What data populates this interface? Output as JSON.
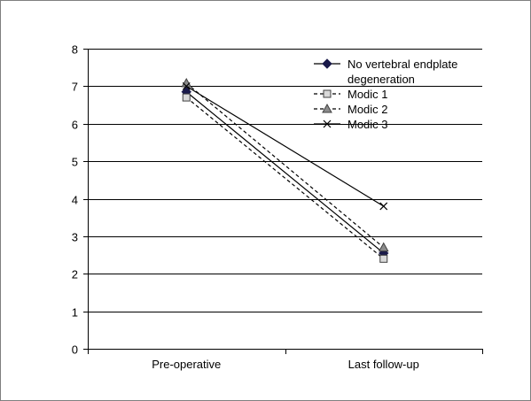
{
  "chart_data": {
    "type": "line",
    "categories": [
      "Pre-operative",
      "Last follow-up"
    ],
    "ylim": [
      0,
      8
    ],
    "yticks": [
      0,
      1,
      2,
      3,
      4,
      5,
      6,
      7,
      8
    ],
    "grid": true,
    "legend_position": "top-right",
    "series": [
      {
        "name": "No vertebral endplate degeneration",
        "name_lines": [
          "No vertebral endplate",
          "degeneration"
        ],
        "values": [
          6.85,
          2.55
        ],
        "marker": "diamond",
        "dash": "solid",
        "color": "#000000"
      },
      {
        "name": "Modic 1",
        "values": [
          6.7,
          2.4
        ],
        "marker": "square",
        "dash": "dashed",
        "color": "#000000"
      },
      {
        "name": "Modic 2",
        "values": [
          7.08,
          2.7
        ],
        "marker": "triangle",
        "dash": "dashed",
        "color": "#000000"
      },
      {
        "name": "Modic 3",
        "values": [
          7.0,
          3.8
        ],
        "marker": "x",
        "dash": "solid",
        "color": "#000000"
      }
    ]
  }
}
